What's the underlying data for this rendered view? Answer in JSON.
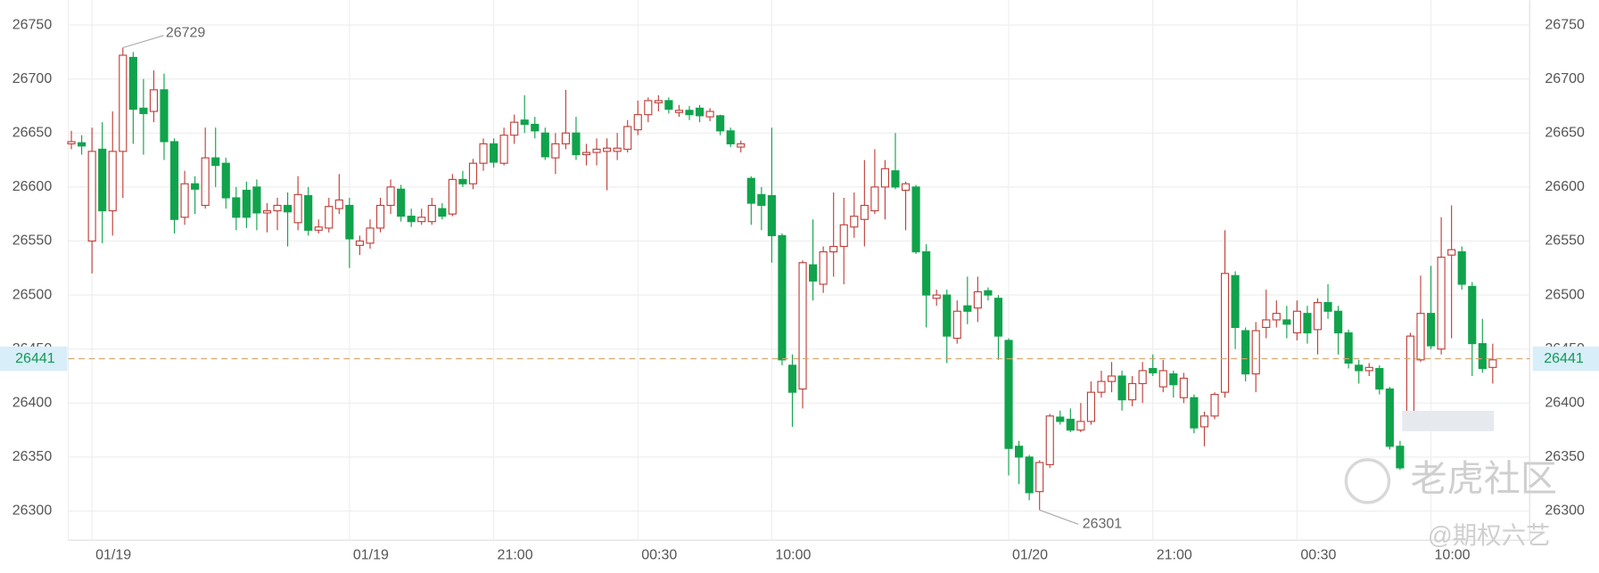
{
  "chart_data": {
    "type": "candlestick",
    "categories": [
      null,
      null,
      "01/19",
      null,
      null,
      null,
      null,
      null,
      null,
      null,
      null,
      null,
      null,
      null,
      null,
      null,
      null,
      null,
      null,
      null,
      null,
      null,
      null,
      null,
      null,
      null,
      null,
      "01/19",
      null,
      null,
      null,
      null,
      null,
      null,
      null,
      null,
      null,
      null,
      null,
      null,
      null,
      "21:00",
      null,
      null,
      null,
      null,
      null,
      null,
      null,
      null,
      null,
      null,
      null,
      null,
      null,
      "00:30",
      null,
      null,
      null,
      null,
      null,
      null,
      null,
      null,
      null,
      null,
      null,
      null,
      "10:00",
      null,
      null,
      null,
      null,
      null,
      null,
      null,
      null,
      null,
      null,
      null,
      null,
      null,
      null,
      null,
      null,
      null,
      null,
      null,
      null,
      null,
      null,
      "01/20",
      null,
      null,
      null,
      null,
      null,
      null,
      null,
      null,
      null,
      null,
      null,
      null,
      null,
      "21:00",
      null,
      null,
      null,
      null,
      null,
      null,
      null,
      null,
      null,
      null,
      null,
      null,
      null,
      "00:30",
      null,
      null,
      null,
      null,
      null,
      null,
      null,
      null,
      null,
      null,
      null,
      null,
      "10:00",
      null,
      null,
      null,
      null,
      null,
      null
    ],
    "open": [
      26640,
      26641,
      26550,
      26635,
      26578,
      26633,
      26720,
      26673,
      26670,
      26690,
      26642,
      26572,
      26603,
      26583,
      26627,
      26622,
      26590,
      26597,
      26600,
      26576,
      26578,
      26583,
      26567,
      26592,
      26560,
      26562,
      26580,
      26583,
      26546,
      26548,
      26562,
      26583,
      26598,
      26573,
      26568,
      26568,
      26580,
      26575,
      26607,
      26603,
      26622,
      26640,
      26622,
      26648,
      26662,
      26658,
      26650,
      26627,
      26640,
      26650,
      26630,
      26632,
      26633,
      26633,
      26635,
      26653,
      26667,
      26678,
      26680,
      26669,
      26671,
      26673,
      26665,
      26666,
      26652,
      26637,
      26608,
      26593,
      26592,
      26555,
      26435,
      26413,
      26528,
      26510,
      26540,
      26545,
      26563,
      26570,
      26578,
      26600,
      26615,
      26597,
      26600,
      26540,
      26497,
      26500,
      26460,
      26490,
      26488,
      26504,
      26497,
      26458,
      26360,
      26350,
      26318,
      26343,
      26387,
      26385,
      26375,
      26383,
      26410,
      26420,
      26425,
      26403,
      26418,
      26432,
      26415,
      26427,
      26405,
      26405,
      26378,
      26388,
      26410,
      26518,
      26467,
      26427,
      26470,
      26477,
      26477,
      26465,
      26483,
      26468,
      26493,
      26485,
      26465,
      26435,
      26430,
      26432,
      26413,
      26360,
      26392,
      26440,
      26483,
      26450,
      26537,
      26540,
      26508,
      26455,
      26433
    ],
    "high": [
      26652,
      26648,
      26655,
      26660,
      26670,
      26729,
      26725,
      26700,
      26708,
      26705,
      26645,
      26615,
      26610,
      26655,
      26655,
      26627,
      26600,
      26605,
      26607,
      26585,
      26590,
      26595,
      26610,
      26600,
      26570,
      26590,
      26612,
      26590,
      26555,
      26570,
      26590,
      26607,
      26602,
      26580,
      26580,
      26590,
      26585,
      26612,
      26615,
      26626,
      26645,
      26645,
      26655,
      26667,
      26685,
      26665,
      26655,
      26650,
      26690,
      26665,
      26640,
      26645,
      26645,
      26650,
      26662,
      26680,
      26683,
      26685,
      26683,
      26676,
      26675,
      26676,
      26673,
      26667,
      26655,
      26643,
      26610,
      26600,
      26655,
      26557,
      26445,
      26532,
      26570,
      26545,
      26595,
      26590,
      26595,
      26625,
      26635,
      26625,
      26650,
      26605,
      26602,
      26547,
      26505,
      26505,
      26495,
      26517,
      26517,
      26507,
      26500,
      26460,
      26365,
      26352,
      26347,
      26390,
      26393,
      26395,
      26400,
      26420,
      26430,
      26438,
      26430,
      26425,
      26438,
      26445,
      26440,
      26430,
      26428,
      26408,
      26392,
      26410,
      26560,
      26522,
      26470,
      26475,
      26505,
      26495,
      26490,
      26495,
      26490,
      26497,
      26510,
      26490,
      26468,
      26440,
      26437,
      26435,
      26415,
      26365,
      26465,
      26518,
      26527,
      26572,
      26583,
      26545,
      26512,
      26478,
      26455
    ],
    "low": [
      26635,
      26630,
      26520,
      26548,
      26555,
      26590,
      26640,
      26630,
      26660,
      26625,
      26557,
      26565,
      26575,
      26580,
      26600,
      26580,
      26560,
      26562,
      26560,
      26558,
      26560,
      26545,
      26560,
      26555,
      26557,
      26558,
      26575,
      26525,
      26537,
      26543,
      26558,
      26575,
      26568,
      26563,
      26565,
      26565,
      26570,
      26573,
      26600,
      26598,
      26615,
      26618,
      26620,
      26640,
      26650,
      26645,
      26625,
      26612,
      26635,
      26625,
      26620,
      26620,
      26597,
      26625,
      26632,
      26648,
      26660,
      26670,
      26668,
      26665,
      26662,
      26660,
      26661,
      26648,
      26637,
      26632,
      26565,
      26560,
      26530,
      26435,
      26378,
      26395,
      26495,
      26502,
      26517,
      26510,
      26553,
      26545,
      26575,
      26570,
      26598,
      26560,
      26538,
      26470,
      26490,
      26437,
      26455,
      26473,
      26475,
      26495,
      26440,
      26333,
      26325,
      26310,
      26301,
      26340,
      26380,
      26373,
      26373,
      26380,
      26405,
      26410,
      26393,
      26397,
      26400,
      26425,
      26410,
      26405,
      26400,
      26372,
      26360,
      26385,
      26405,
      26450,
      26420,
      26410,
      26460,
      26470,
      26460,
      26458,
      26455,
      26445,
      26478,
      26445,
      26432,
      26418,
      26425,
      26408,
      26357,
      26338,
      26385,
      26438,
      26450,
      26445,
      26460,
      26505,
      26425,
      26428,
      26418
    ],
    "close": [
      26642,
      26638,
      26633,
      26578,
      26633,
      26722,
      26672,
      26668,
      26690,
      26642,
      26570,
      26603,
      26598,
      26627,
      26620,
      26590,
      26572,
      26572,
      26576,
      26578,
      26583,
      26577,
      26593,
      26560,
      26563,
      26582,
      26588,
      26552,
      26550,
      26562,
      26583,
      26600,
      26573,
      26568,
      26572,
      26583,
      26573,
      26607,
      26603,
      26622,
      26640,
      26623,
      26648,
      26660,
      26658,
      26652,
      26628,
      26640,
      26650,
      26630,
      26632,
      26635,
      26636,
      26636,
      26656,
      26667,
      26680,
      26680,
      26672,
      26671,
      26667,
      26666,
      26670,
      26652,
      26640,
      26640,
      26585,
      26583,
      26555,
      26440,
      26410,
      26530,
      26513,
      26540,
      26545,
      26565,
      26573,
      26583,
      26600,
      26617,
      26600,
      26603,
      26540,
      26500,
      26500,
      26462,
      26485,
      26485,
      26503,
      26500,
      26462,
      26358,
      26350,
      26317,
      26345,
      26388,
      26383,
      26375,
      26383,
      26410,
      26420,
      26425,
      26403,
      26418,
      26430,
      26428,
      26430,
      26417,
      26423,
      26377,
      26388,
      26408,
      26520,
      26470,
      26427,
      26467,
      26477,
      26483,
      26473,
      26485,
      26465,
      26493,
      26485,
      26465,
      26437,
      26430,
      26433,
      26413,
      26360,
      26340,
      26462,
      26483,
      26453,
      26535,
      26542,
      26510,
      26455,
      26432,
      26440
    ],
    "up_color": "#c0403a",
    "down_color": "#10a34c",
    "ylim": [
      26273,
      26773
    ],
    "yticks": [
      26300,
      26350,
      26400,
      26450,
      26500,
      26550,
      26600,
      26650,
      26700,
      26750
    ],
    "grid": true,
    "high_label": 26729,
    "low_label": 26301,
    "last_price": 26441,
    "watermark": [
      "老虎社区",
      "@期权六艺"
    ]
  }
}
